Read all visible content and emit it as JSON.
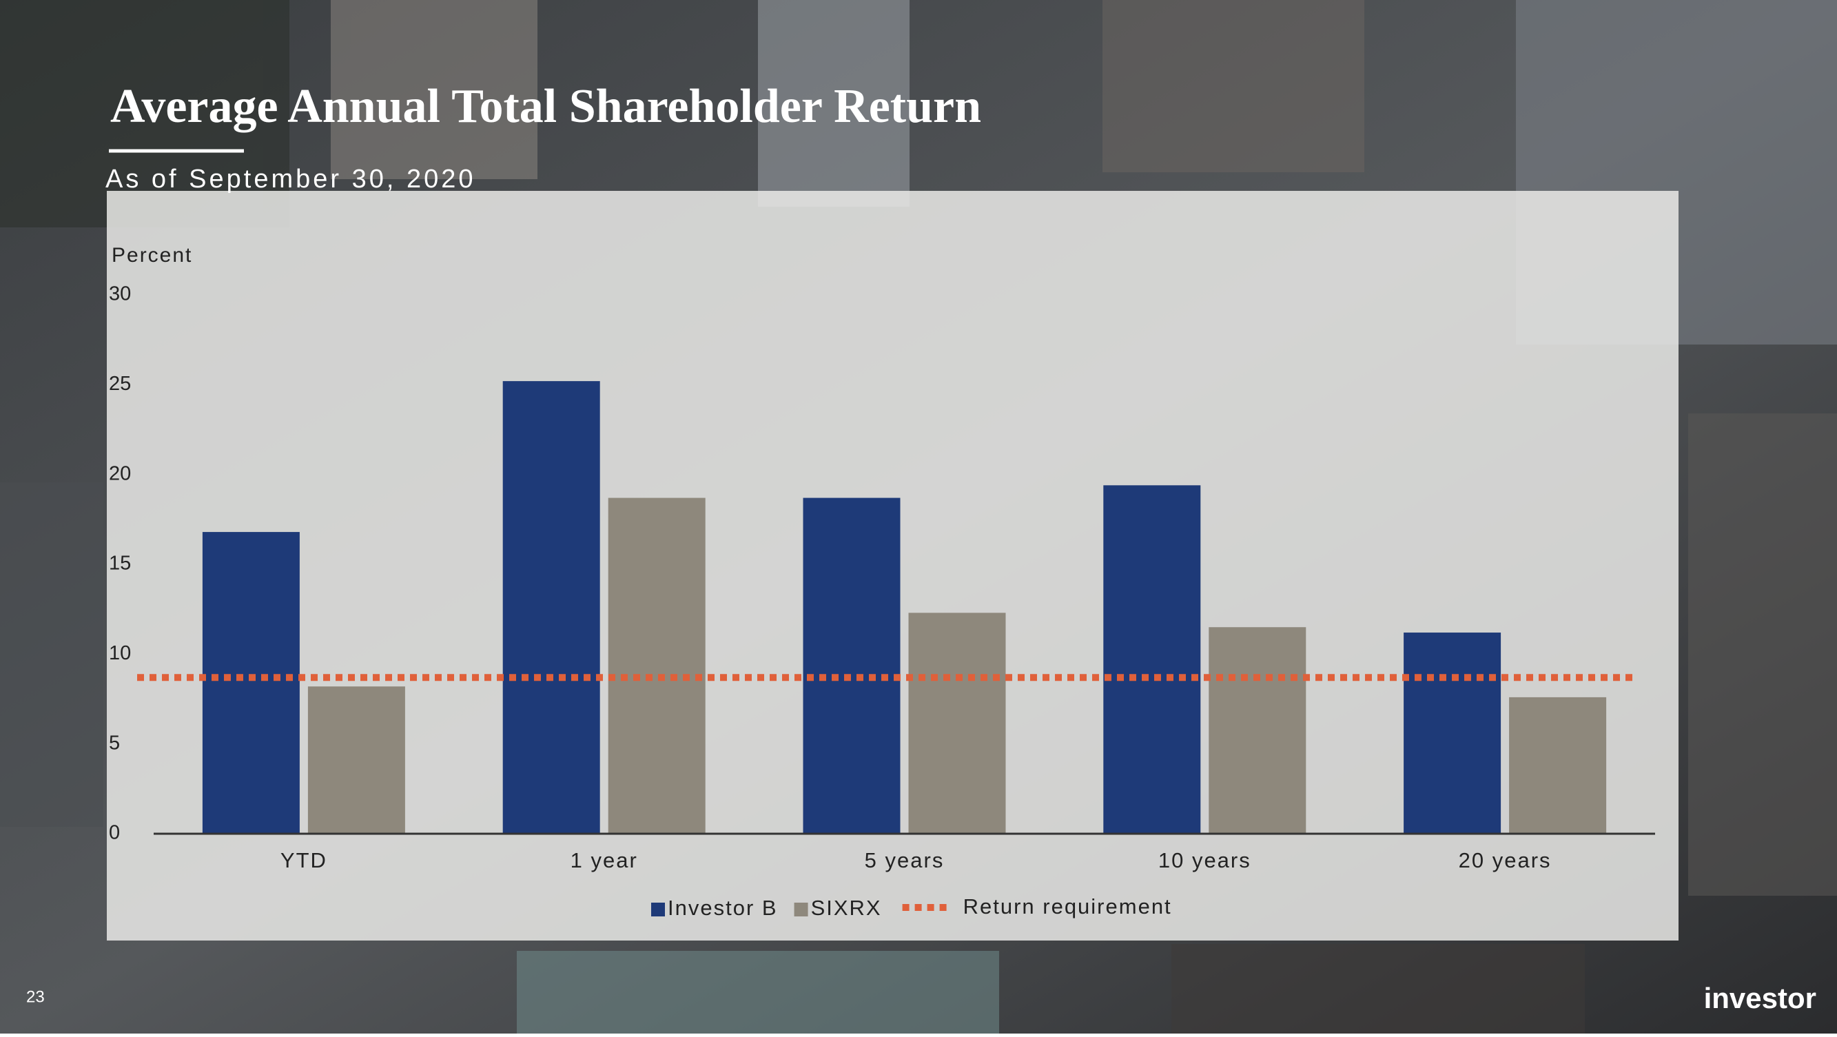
{
  "chart_data": {
    "type": "bar",
    "title": "Average Annual Total Shareholder Return",
    "subtitle": "As of September 30, 2020",
    "y_label": "Percent",
    "categories": [
      "YTD",
      "1 year",
      "5 years",
      "10 years",
      "20 years"
    ],
    "series": [
      {
        "name": "Investor B",
        "color": "#1e3a78",
        "values": [
          16.8,
          25.2,
          18.7,
          19.4,
          11.2
        ]
      },
      {
        "name": "SIXRX",
        "color": "#8e887c",
        "values": [
          8.2,
          18.7,
          12.3,
          11.5,
          7.6
        ]
      }
    ],
    "reference_line": {
      "name": "Return requirement",
      "value": 8.7,
      "color": "#e0603a"
    },
    "ylim": [
      0,
      30
    ],
    "yticks": [
      0,
      5,
      10,
      15,
      20,
      25,
      30
    ],
    "grid": false,
    "legend": "bottom"
  },
  "page_number": "23",
  "logo": "investor"
}
